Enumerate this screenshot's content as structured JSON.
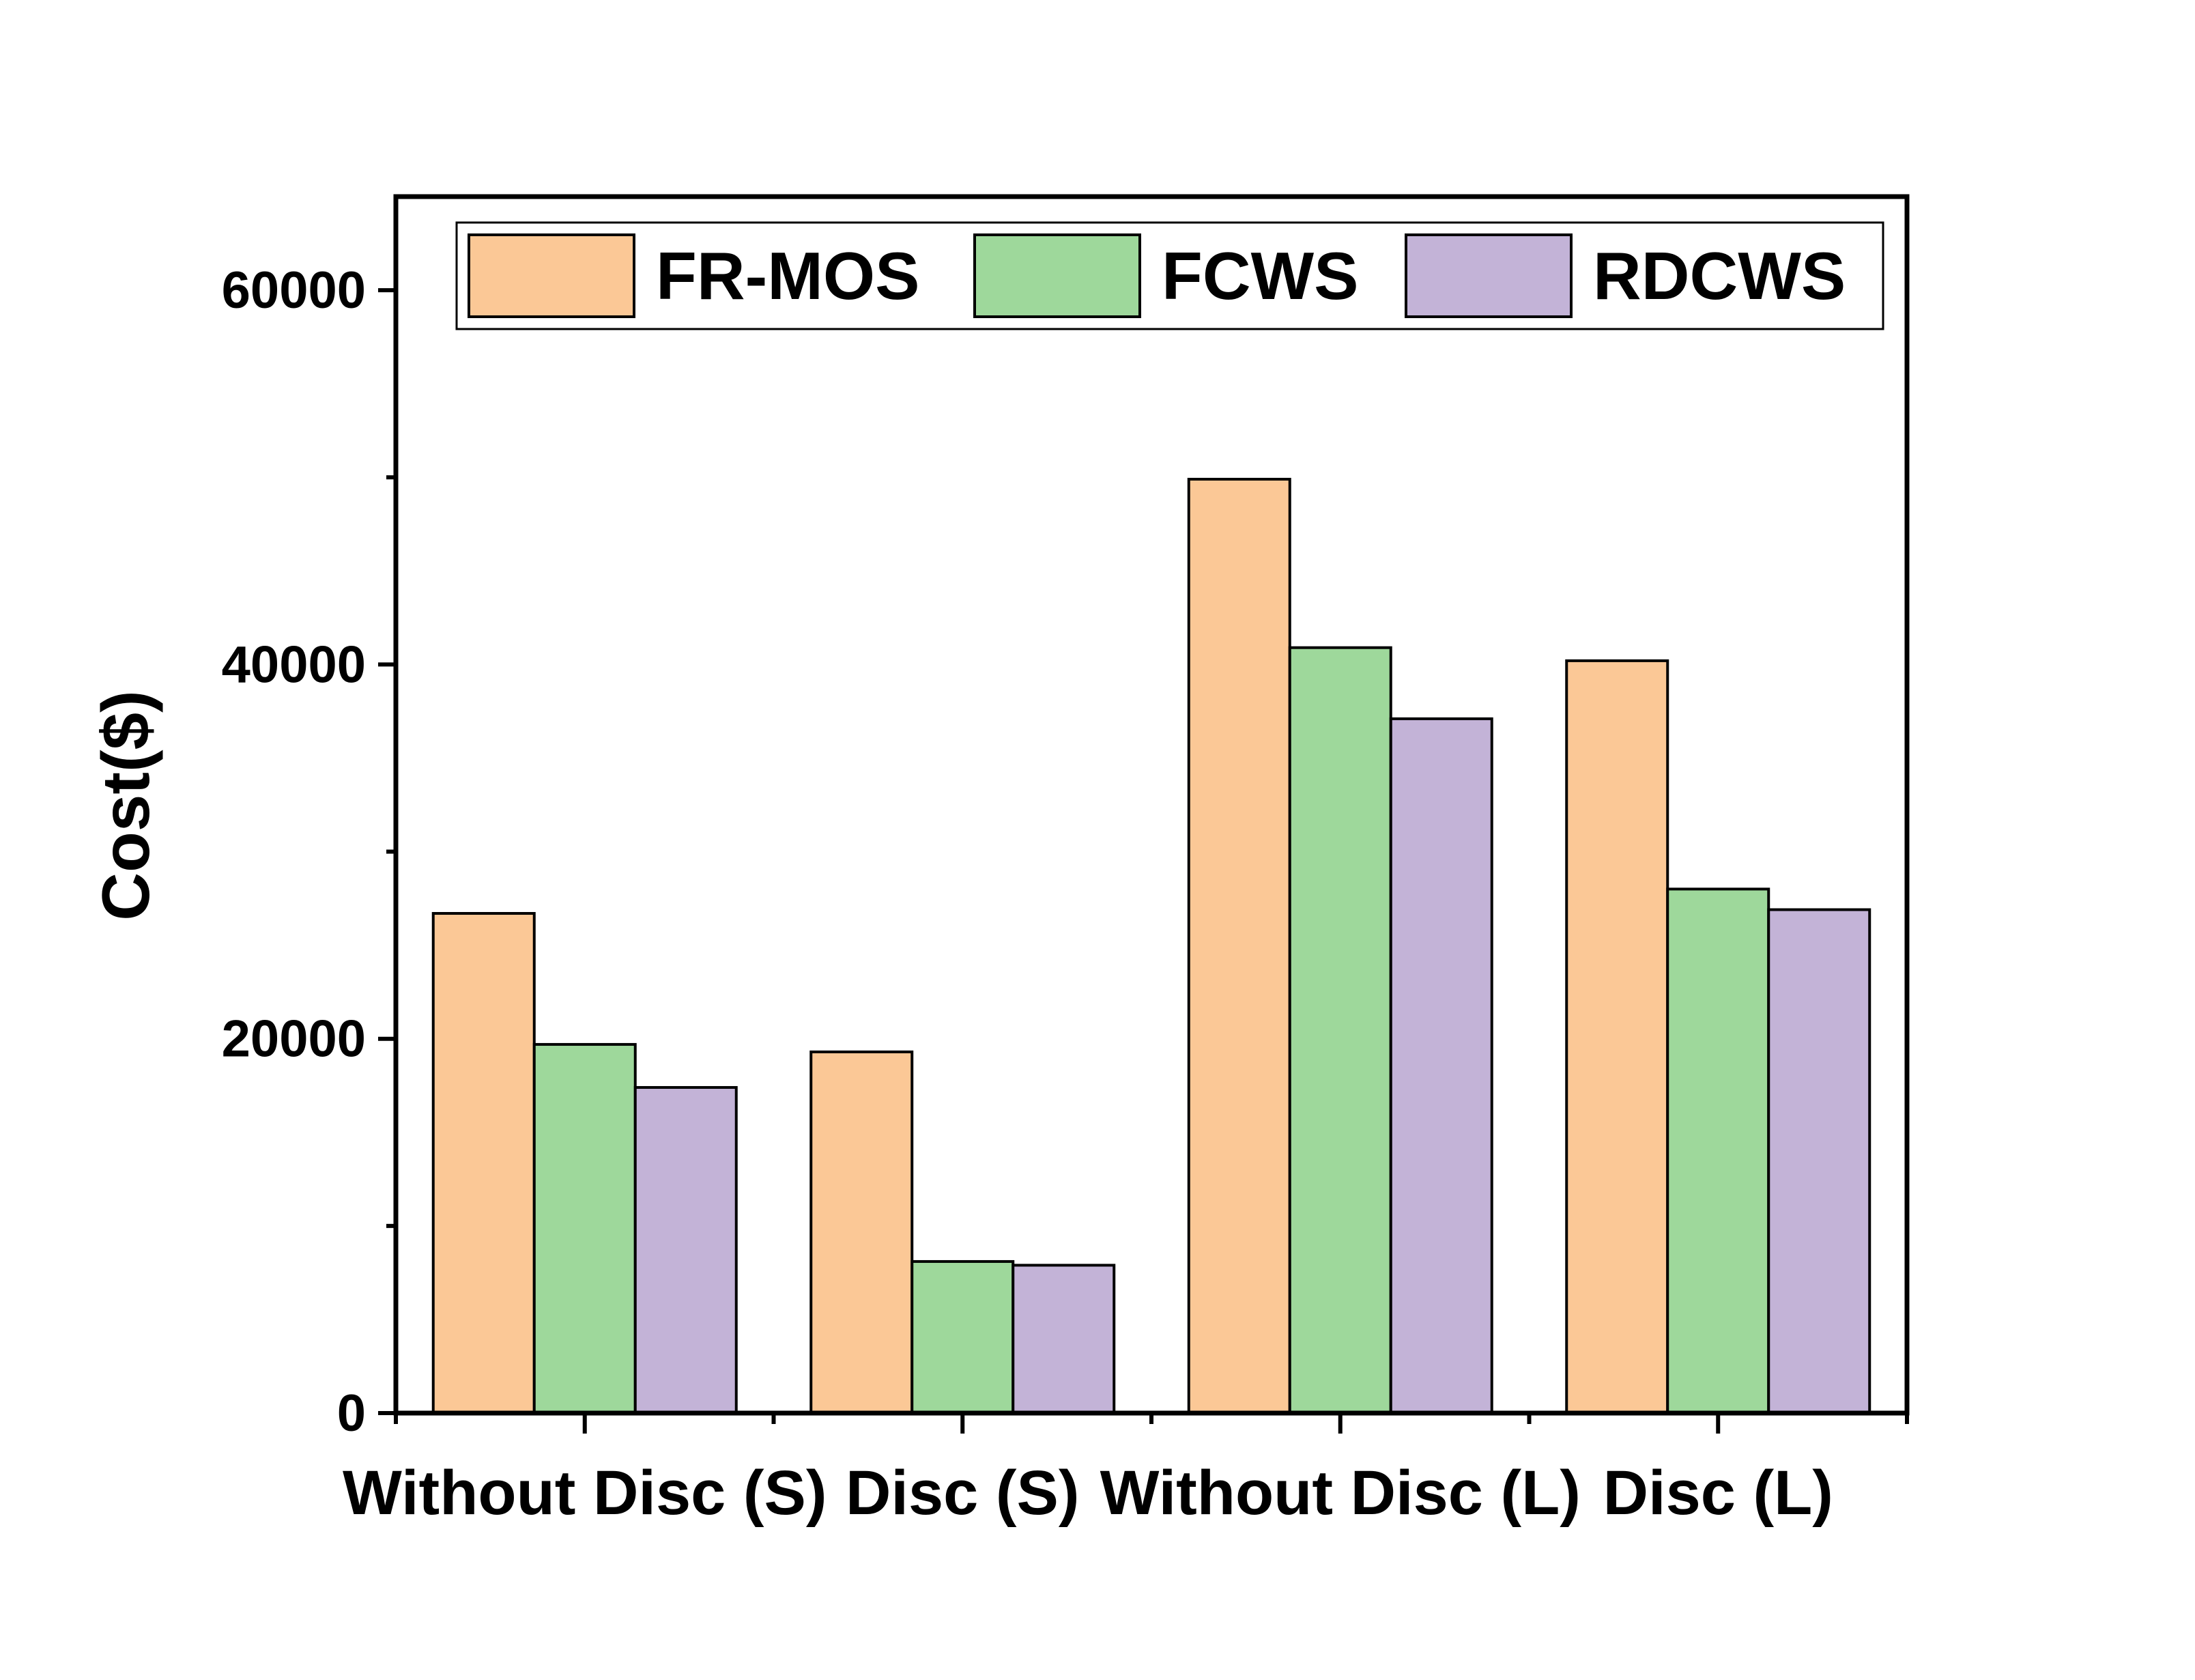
{
  "chart_data": {
    "type": "bar",
    "title": "",
    "xlabel": "",
    "ylabel": "Cost($)",
    "ylim": [
      0,
      65000
    ],
    "yticks": [
      0,
      20000,
      40000,
      60000
    ],
    "minor_ytick_step": 10000,
    "categories": [
      "Without Disc (S)",
      "Disc (S)",
      "Without Disc (L)",
      "Disc (L)"
    ],
    "series": [
      {
        "name": "FR-MOS",
        "color": "#FBC896",
        "values": [
          26700,
          19300,
          49900,
          40200
        ]
      },
      {
        "name": "FCWS",
        "color": "#9ED89B",
        "values": [
          19700,
          8100,
          40900,
          28000
        ]
      },
      {
        "name": "RDCWS",
        "color": "#C3B3D7",
        "values": [
          17400,
          7900,
          37100,
          26900
        ]
      }
    ],
    "legend_position": "top",
    "grid": false
  }
}
